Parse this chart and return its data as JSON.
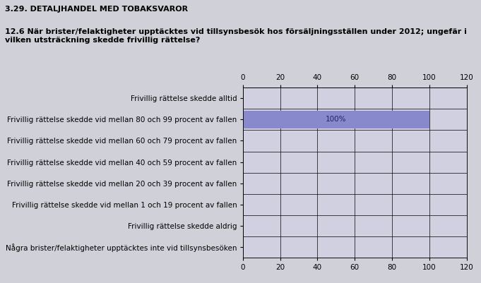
{
  "title": "3.29. DETALJHANDEL MED TOBAKSVAROR",
  "subtitle": "12.6 När brister/felaktigheter upptäcktes vid tillsynsbesök hos försäljningsställen under 2012; ungefär i\nvilken utsträckning skedde frivillig rättelse?",
  "categories": [
    "Frivillig rättelse skedde alltid",
    "Frivillig rättelse skedde vid mellan 80 och 99 procent av fallen",
    "Frivillig rättelse skedde vid mellan 60 och 79 procent av fallen",
    "Frivillig rättelse skedde vid mellan 40 och 59 procent av fallen",
    "Frivillig rättelse skedde vid mellan 20 och 39 procent av fallen",
    "Frivillig rättelse skedde vid mellan 1 och 19 procent av fallen",
    "Frivillig rättelse skedde aldrig",
    "Några brister/felaktigheter upptäcktes inte vid tillsynsbesöken"
  ],
  "values": [
    0,
    100,
    0,
    0,
    0,
    0,
    0,
    0
  ],
  "bar_color_active": "#8888cc",
  "bar_color_inactive": "#c8c8d8",
  "bar_label": "100%",
  "bar_label_index": 1,
  "xlim": [
    0,
    120
  ],
  "xticks": [
    0,
    20,
    40,
    60,
    80,
    100,
    120
  ],
  "background_color": "#d0d0d8",
  "plot_bg_color": "#d0d0e0",
  "title_fontsize": 8,
  "subtitle_fontsize": 8,
  "tick_fontsize": 7.5,
  "label_fontsize": 7.5
}
